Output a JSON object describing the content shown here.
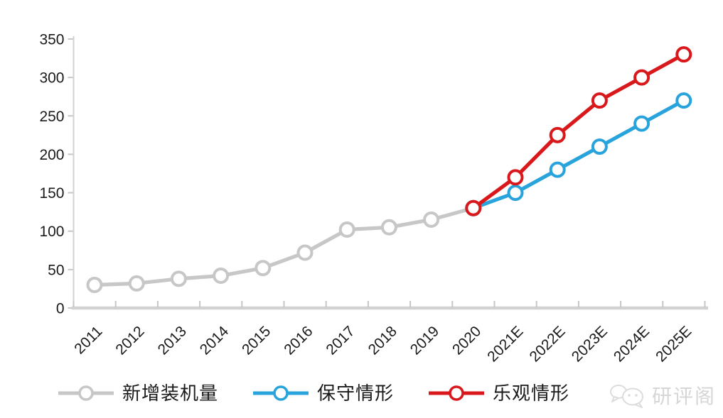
{
  "chart_data": {
    "type": "line",
    "title": "",
    "xlabel": "",
    "ylabel": "",
    "x_categories": [
      "2011",
      "2012",
      "2013",
      "2014",
      "2015",
      "2016",
      "2017",
      "2018",
      "2019",
      "2020",
      "2021E",
      "2022E",
      "2023E",
      "2024E",
      "2025E"
    ],
    "ylim": [
      0,
      350
    ],
    "y_ticks": [
      0,
      50,
      100,
      150,
      200,
      250,
      300,
      350
    ],
    "grid": false,
    "legend_position": "bottom",
    "axis_color": "#d2d2d2",
    "tick_color": "#c6c6c6",
    "label_color": "#1a1a1a",
    "marker_style": "open-circle",
    "series": [
      {
        "name": "新增装机量",
        "color": "#c7c7c7",
        "x": [
          "2011",
          "2012",
          "2013",
          "2014",
          "2015",
          "2016",
          "2017",
          "2018",
          "2019",
          "2020"
        ],
        "values": [
          30,
          32,
          38,
          42,
          52,
          72,
          102,
          105,
          115,
          130
        ]
      },
      {
        "name": "保守情形",
        "color": "#29a3dc",
        "x": [
          "2020",
          "2021E",
          "2022E",
          "2023E",
          "2024E",
          "2025E"
        ],
        "values": [
          130,
          150,
          180,
          210,
          240,
          270
        ]
      },
      {
        "name": "乐观情形",
        "color": "#d9181c",
        "x": [
          "2020",
          "2021E",
          "2022E",
          "2023E",
          "2024E",
          "2025E"
        ],
        "values": [
          130,
          170,
          225,
          270,
          300,
          330
        ]
      }
    ]
  },
  "watermark": {
    "text": "研评阁",
    "icon": "wechat-chat-bubbles-icon"
  }
}
